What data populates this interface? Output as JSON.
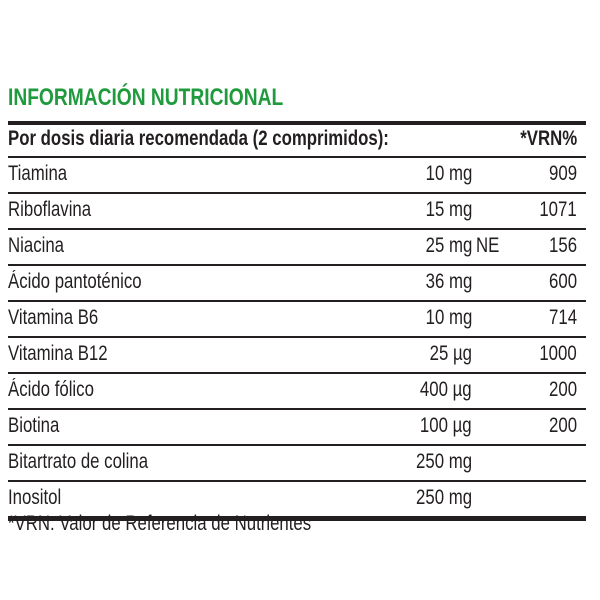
{
  "title": "INFORMACIÓN NUTRICIONAL",
  "table": {
    "header": {
      "label": "Por dosis diaria recomendada (2 comprimidos):",
      "vrn": "*VRN%"
    },
    "rows": [
      {
        "name": "Tiamina",
        "amount": "10 mg",
        "note": "",
        "vrn": "909"
      },
      {
        "name": "Riboflavina",
        "amount": "15 mg",
        "note": "",
        "vrn": "1071"
      },
      {
        "name": "Niacina",
        "amount": "25 mg",
        "note": "NE",
        "vrn": "156"
      },
      {
        "name": "Ácido pantoténico",
        "amount": "36 mg",
        "note": "",
        "vrn": "600"
      },
      {
        "name": "Vitamina B6",
        "amount": "10 mg",
        "note": "",
        "vrn": "714"
      },
      {
        "name": "Vitamina B12",
        "amount": "25 µg",
        "note": "",
        "vrn": "1000"
      },
      {
        "name": "Ácido fólico",
        "amount": "400 µg",
        "note": "",
        "vrn": "200"
      },
      {
        "name": "Biotina",
        "amount": "100 µg",
        "note": "",
        "vrn": "200"
      },
      {
        "name": "Bitartrato de colina",
        "amount": "250 mg",
        "note": "",
        "vrn": ""
      },
      {
        "name": "Inositol",
        "amount": "250 mg",
        "note": "",
        "vrn": ""
      }
    ]
  },
  "footnote": "*VRN: Valor de Referencia de Nutrientes",
  "colors": {
    "title": "#1f9a3d",
    "text": "#231f20"
  }
}
